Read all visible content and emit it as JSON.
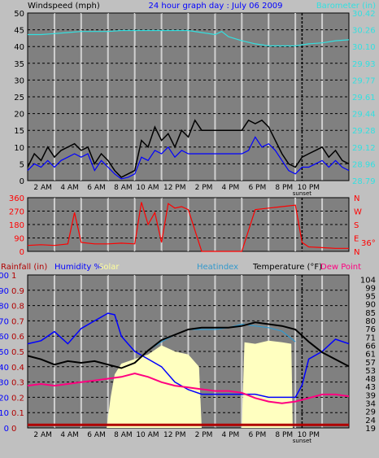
{
  "colors": {
    "page_bg": "#c0c0c0",
    "plot_bg": "#808080",
    "grid": "#000000",
    "wind_gust": "#000000",
    "wind_avg": "#0000ff",
    "wind_min": "#3a3a3a",
    "barometer": "#33e0e0",
    "direction": "#ff0000",
    "humidity": "#0000ff",
    "heatindex": "#3399cc",
    "temperature": "#000000",
    "dewpoint": "#ff0080",
    "solar": "#ffffc0",
    "rain": "#b00000",
    "sunset": "#000000"
  },
  "chart_data": [
    {
      "type": "line",
      "panel": "wind-barometer",
      "title": "24 hour graph day : July 06 2009",
      "left_axis_label": "Windspeed (mph)",
      "right_axis_label": "Barometer (in)",
      "x_tick_labels": [
        "2 AM",
        "4 AM",
        "6 AM",
        "8 AM",
        "10 AM",
        "12 PM",
        "2 PM",
        "4 PM",
        "6 PM",
        "8 PM",
        "10 PM"
      ],
      "x_tick_hours": [
        2,
        4,
        6,
        8,
        10,
        12,
        14,
        16,
        18,
        20,
        22
      ],
      "x_sub_label": "sunset",
      "xlim_hours": [
        0,
        24
      ],
      "left_ticks": [
        "0",
        "5",
        "10",
        "15",
        "20",
        "25",
        "30",
        "35",
        "40",
        "45",
        "50"
      ],
      "ylim_left": [
        0,
        50
      ],
      "right_ticks": [
        "28.79",
        "28.96",
        "29.12",
        "29.28",
        "29.44",
        "29.61",
        "29.77",
        "29.93",
        "30.10",
        "30.26",
        "30.42"
      ],
      "ylim_right": [
        28.79,
        30.42
      ],
      "series": [
        {
          "key": "gust",
          "x": [
            0,
            0.5,
            1,
            1.5,
            2,
            2.5,
            3,
            3.5,
            4,
            4.5,
            5,
            5.5,
            6,
            6.5,
            7,
            7.5,
            8,
            8.5,
            9,
            9.5,
            10,
            10.5,
            11,
            11.5,
            12,
            12.5,
            13,
            16,
            16.5,
            17,
            17.5,
            18,
            18.5,
            19,
            19.5,
            20,
            20.5,
            21,
            21.5,
            22,
            22.5,
            23,
            23.5,
            24
          ],
          "values": [
            4,
            8,
            6,
            10,
            7,
            9,
            10,
            11,
            9,
            10,
            5,
            8,
            6,
            3,
            1,
            2,
            3,
            12,
            10,
            16,
            12,
            14,
            10,
            15,
            13,
            18,
            15,
            15,
            18,
            17,
            18,
            16,
            12,
            8,
            5,
            4,
            7,
            8,
            9,
            10,
            7,
            9,
            6,
            5
          ]
        },
        {
          "key": "avg",
          "x": [
            0,
            0.5,
            1,
            1.5,
            2,
            2.5,
            3,
            3.5,
            4,
            4.5,
            5,
            5.5,
            6,
            6.5,
            7,
            7.5,
            8,
            8.5,
            9,
            9.5,
            10,
            10.5,
            11,
            11.5,
            12,
            12.5,
            16,
            16.5,
            17,
            17.5,
            18,
            18.5,
            19,
            19.5,
            20,
            20.5,
            21,
            21.5,
            22,
            22.5,
            23,
            23.5,
            24
          ],
          "values": [
            3,
            5,
            4,
            6,
            4,
            6,
            7,
            8,
            7,
            8,
            3,
            6,
            4,
            2,
            0.5,
            1,
            2,
            7,
            6,
            9,
            8,
            10,
            7,
            9,
            8,
            8,
            8,
            9,
            13,
            10,
            11,
            9,
            6,
            3,
            2,
            4,
            4,
            5,
            6,
            4,
            6,
            4,
            3
          ]
        },
        {
          "key": "barometer",
          "x": [
            0,
            1,
            2,
            3,
            4,
            5,
            6,
            7,
            8,
            9,
            10,
            11,
            12,
            13,
            14,
            14.5,
            15,
            16,
            17,
            18,
            19,
            20,
            21,
            22,
            23,
            24
          ],
          "values": [
            30.21,
            30.21,
            30.22,
            30.23,
            30.24,
            30.24,
            30.24,
            30.25,
            30.25,
            30.25,
            30.25,
            30.25,
            30.25,
            30.23,
            30.21,
            30.24,
            30.19,
            30.15,
            30.12,
            30.1,
            30.1,
            30.1,
            30.12,
            30.13,
            30.15,
            30.16
          ]
        }
      ]
    },
    {
      "type": "line",
      "panel": "wind-direction",
      "left_ticks": [
        "0",
        "90",
        "180",
        "270",
        "360"
      ],
      "ylim": [
        0,
        360
      ],
      "right_labels": [
        "N",
        "W",
        "S",
        "E",
        "N"
      ],
      "side_value": "36°",
      "series": [
        {
          "key": "direction",
          "x": [
            0,
            1,
            2,
            3,
            3.5,
            4,
            5,
            6,
            7,
            8,
            8.5,
            9,
            9.5,
            10,
            10.5,
            11,
            11.5,
            12,
            13,
            14,
            15,
            16,
            17,
            18,
            19,
            20,
            20.5,
            21,
            22,
            23,
            24
          ],
          "values": [
            40,
            45,
            40,
            50,
            260,
            60,
            50,
            50,
            55,
            50,
            330,
            180,
            260,
            60,
            320,
            290,
            300,
            280,
            0,
            0,
            0,
            0,
            280,
            290,
            300,
            310,
            60,
            30,
            25,
            20,
            20
          ]
        }
      ]
    },
    {
      "type": "line",
      "panel": "temperature-humidity",
      "legend": [
        "Rainfall (in)",
        "Humidity %",
        "Solar",
        "Heatindex",
        "Temperature (°F)",
        "Dew Point"
      ],
      "rain_ticks": [
        "0",
        "0.1",
        "0.2",
        "0.3",
        "0.4",
        "0.5",
        "0.6",
        "0.7",
        "0.8",
        "0.9",
        "1"
      ],
      "humidity_ticks": [
        "0",
        "10",
        "20",
        "30",
        "40",
        "50",
        "60",
        "70",
        "80",
        "90",
        "100"
      ],
      "ylim_humidity": [
        0,
        100
      ],
      "temp_ticks": [
        "19",
        "24",
        "29",
        "34",
        "39",
        "43",
        "48",
        "53",
        "57",
        "61",
        "66",
        "71",
        "76",
        "80",
        "85",
        "90",
        "95",
        "99",
        "104"
      ],
      "temp_tick_percent": [
        0,
        5.4,
        10.8,
        16.2,
        21.6,
        27,
        32.4,
        37.8,
        43.2,
        48.6,
        54,
        59.4,
        64.8,
        70.2,
        75.6,
        81,
        86.4,
        91.8,
        97.2
      ],
      "temp_ylim": [
        19,
        106
      ],
      "series": [
        {
          "key": "humidity",
          "x": [
            0,
            1,
            2,
            3,
            4,
            5,
            6,
            6.5,
            7,
            7.5,
            8,
            9,
            10,
            11,
            12,
            13,
            14,
            15,
            16,
            17,
            18,
            19,
            20,
            20.5,
            21,
            22,
            23,
            24
          ],
          "values": [
            55,
            57,
            63,
            55,
            65,
            70,
            75,
            74,
            60,
            55,
            50,
            45,
            40,
            30,
            25,
            22,
            22,
            22,
            22,
            22,
            20,
            20,
            20,
            28,
            45,
            50,
            58,
            55
          ]
        },
        {
          "key": "heatindex",
          "x": [
            9,
            10,
            11,
            12,
            13,
            14,
            15,
            16,
            17,
            18,
            19,
            20
          ],
          "values": [
            63,
            68,
            72,
            75,
            75,
            75,
            76,
            78,
            77,
            76,
            74,
            68
          ]
        },
        {
          "key": "temperature",
          "x": [
            0,
            1,
            2,
            3,
            4,
            5,
            6,
            7,
            8,
            9,
            10,
            11,
            12,
            13,
            14,
            15,
            16,
            17,
            18,
            19,
            20,
            21,
            22,
            23,
            24
          ],
          "values": [
            60,
            58,
            55,
            57,
            56,
            57,
            55,
            53,
            56,
            63,
            69,
            72,
            75,
            76,
            76,
            76,
            77,
            79,
            78,
            77,
            75,
            68,
            62,
            58,
            54
          ]
        },
        {
          "key": "dewpoint",
          "x": [
            0,
            1,
            2,
            3,
            4,
            5,
            6,
            7,
            8,
            9,
            10,
            11,
            12,
            13,
            14,
            15,
            16,
            17,
            18,
            19,
            20,
            21,
            22,
            23,
            24
          ],
          "values": [
            43,
            44,
            43,
            44,
            45,
            46,
            47,
            48,
            50,
            48,
            45,
            43,
            42,
            41,
            40,
            40,
            39,
            36,
            34,
            33,
            34,
            36,
            38,
            38,
            37
          ]
        },
        {
          "key": "solar",
          "x": [
            5.9,
            6.2,
            6.5,
            7,
            8,
            9,
            10,
            11,
            12,
            12.8,
            13,
            16,
            16.2,
            17,
            18,
            19,
            19.7,
            19.8
          ],
          "values": [
            0,
            20,
            35,
            42,
            45,
            48,
            54,
            50,
            48,
            40,
            0,
            0,
            56,
            55,
            57,
            56,
            55,
            0
          ]
        },
        {
          "key": "rainfall",
          "x": [
            0,
            24
          ],
          "values": [
            0.02,
            0.02
          ]
        }
      ]
    }
  ]
}
